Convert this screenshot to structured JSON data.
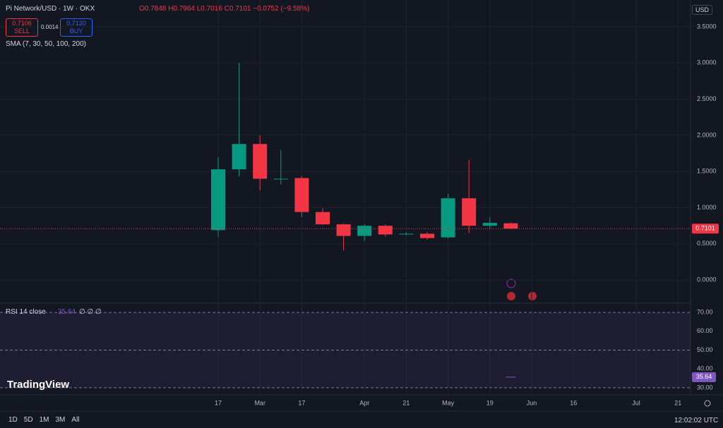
{
  "header": {
    "symbol": "Pi Network/USD · 1W · OKX",
    "ohlc": "O0.7848 H0.7964 L0.7016 C0.7101 −0.0752 (−9.58%)",
    "sell_price": "0.7106",
    "sell": "SELL",
    "spread": "0.0014",
    "buy_price": "0.7120",
    "buy": "BUY",
    "indicator": "SMA (7, 30, 50, 100, 200)",
    "currency": "USD",
    "brand": "TradingView",
    "ranges": [
      "1D",
      "5D",
      "1M",
      "3M",
      "All"
    ],
    "clock": "12:02:02 UTC"
  },
  "chart_data": [
    {
      "type": "candlestick",
      "categories": [
        "17",
        null,
        "Mar",
        null,
        "17",
        null,
        null,
        "Apr",
        null,
        "21",
        null,
        "May",
        null,
        "19",
        null,
        "Jun",
        null,
        "16",
        null,
        null,
        "Jul",
        null,
        "21"
      ],
      "open": [
        0.69,
        1.53,
        1.88,
        1.4,
        1.41,
        0.94,
        0.77,
        0.61,
        0.75,
        0.64,
        0.64,
        0.59,
        1.13,
        0.75,
        0.7848,
        null,
        null,
        null,
        null,
        null,
        null,
        null,
        null
      ],
      "high": [
        1.7,
        3.0,
        2.0,
        1.8,
        1.44,
        0.99,
        0.78,
        0.77,
        0.77,
        0.66,
        0.66,
        1.19,
        1.66,
        0.87,
        0.7964,
        null,
        null,
        null,
        null,
        null,
        null,
        null,
        null
      ],
      "low": [
        0.6,
        1.43,
        1.24,
        1.32,
        0.87,
        0.76,
        0.41,
        0.54,
        0.6,
        0.62,
        0.56,
        0.58,
        0.65,
        0.7,
        0.7016,
        null,
        null,
        null,
        null,
        null,
        null,
        null,
        null
      ],
      "close": [
        1.53,
        1.88,
        1.4,
        1.4,
        0.94,
        0.77,
        0.61,
        0.75,
        0.63,
        0.64,
        0.58,
        1.13,
        0.75,
        0.79,
        0.7101,
        null,
        null,
        null,
        null,
        null,
        null,
        null,
        null
      ],
      "up_color": "#089981",
      "down_color": "#f23645",
      "ylim": [
        -0.32,
        3.87
      ],
      "yticks": [
        {
          "value": 0,
          "label": "0.0000"
        },
        {
          "value": 0.5,
          "label": "0.5000"
        },
        {
          "value": 1,
          "label": "1.0000"
        },
        {
          "value": 1.5,
          "label": "1.5000"
        },
        {
          "value": 2,
          "label": "2.0000"
        },
        {
          "value": 2.5,
          "label": "2.5000"
        },
        {
          "value": 3,
          "label": "3.0000"
        },
        {
          "value": 3.5,
          "label": "3.5000"
        }
      ],
      "grid": true
    },
    {
      "type": "line",
      "title": "RSI 14 close",
      "legend_extra": "∅ ∅ ∅",
      "series": [
        {
          "name": "RSI",
          "color": "#7e57c2",
          "values": [
            null,
            null,
            null,
            null,
            null,
            null,
            null,
            null,
            null,
            null,
            null,
            null,
            null,
            null,
            35.64,
            null,
            null,
            null,
            null,
            null,
            null,
            null,
            null
          ]
        }
      ],
      "ylim": [
        28.1,
        74.9
      ],
      "yticks": [
        {
          "value": 30,
          "label": "30.00"
        },
        {
          "value": 40,
          "label": "40.00"
        },
        {
          "value": 50,
          "label": "50.00"
        },
        {
          "value": 60,
          "label": "60.00"
        },
        {
          "value": 70,
          "label": "70.00"
        }
      ],
      "bands": [
        30,
        70
      ],
      "dashed": [
        30,
        50,
        70
      ]
    }
  ]
}
